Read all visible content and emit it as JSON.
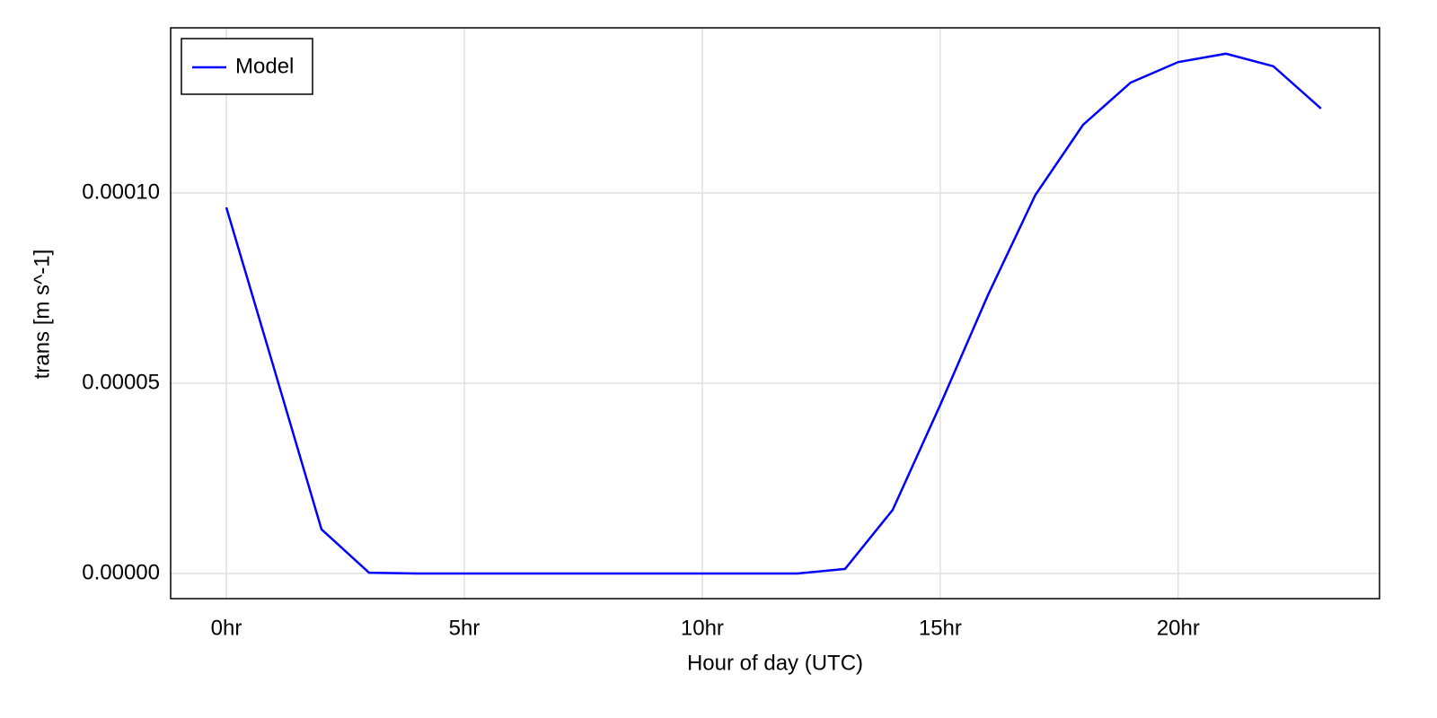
{
  "chart_data": {
    "type": "line",
    "xlabel": "Hour of day (UTC)",
    "ylabel": "trans [m s^-1]",
    "x": [
      0,
      1,
      2,
      3,
      4,
      5,
      6,
      7,
      8,
      9,
      10,
      11,
      12,
      13,
      14,
      15,
      16,
      17,
      18,
      19,
      20,
      21,
      22,
      23
    ],
    "series": [
      {
        "name": "Model",
        "color": "#0000ff",
        "values": [
          9.62e-05,
          5.4e-05,
          1.16e-05,
          2e-07,
          0,
          0,
          0,
          0,
          0,
          0,
          0,
          0,
          0,
          1.2e-06,
          1.67e-05,
          4.43e-05,
          7.31e-05,
          9.95e-05,
          0.0001179,
          0.000129,
          0.0001344,
          0.0001366,
          0.0001333,
          0.0001222
        ]
      }
    ],
    "xlim": [
      -1.17,
      24.23
    ],
    "ylim": [
      -6.6e-06,
      0.0001434
    ],
    "xticks": [
      {
        "value": 0,
        "label": "0hr"
      },
      {
        "value": 5,
        "label": "5hr"
      },
      {
        "value": 10,
        "label": "10hr"
      },
      {
        "value": 15,
        "label": "15hr"
      },
      {
        "value": 20,
        "label": "20hr"
      }
    ],
    "yticks": [
      {
        "value": 0,
        "label": "0.00000"
      },
      {
        "value": 5e-05,
        "label": "0.00005"
      },
      {
        "value": 0.0001,
        "label": "0.00010"
      }
    ],
    "grid": true,
    "legend": "top-left"
  }
}
